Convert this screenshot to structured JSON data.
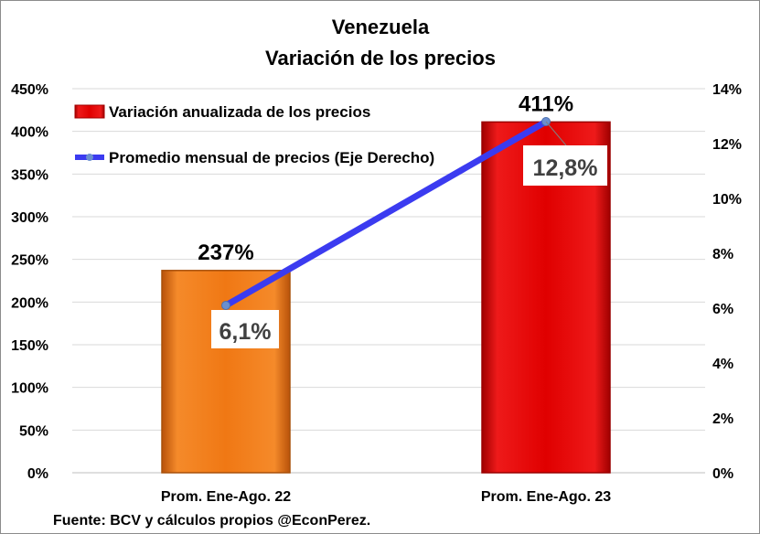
{
  "chart_data": {
    "type": "bar",
    "title": [
      "Venezuela",
      "Variación de los precios"
    ],
    "categories": [
      "Prom. Ene-Ago. 22",
      "Prom. Ene-Ago. 23"
    ],
    "series": [
      {
        "name": "Variación anualizada de los precios",
        "type": "bar",
        "axis": "left",
        "values": [
          237,
          411
        ],
        "labels": [
          "237%",
          "411%"
        ],
        "colors": [
          "#f07814",
          "#e00000"
        ]
      },
      {
        "name": "Promedio mensual de precios (Eje Derecho)",
        "type": "line",
        "axis": "right",
        "values": [
          6.1,
          12.8
        ],
        "labels": [
          "6,1%",
          "12,8%"
        ],
        "color": "#3b3bf0"
      }
    ],
    "y_left": {
      "min": 0,
      "max": 450,
      "ticks": [
        "0%",
        "50%",
        "100%",
        "150%",
        "200%",
        "250%",
        "300%",
        "350%",
        "400%",
        "450%"
      ]
    },
    "y_right": {
      "min": 0,
      "max": 14,
      "ticks": [
        "0%",
        "2%",
        "4%",
        "6%",
        "8%",
        "10%",
        "12%",
        "14%"
      ]
    },
    "grid": true,
    "legend": "top-left",
    "source": "Fuente: BCV y cálculos propios @EconPerez."
  }
}
